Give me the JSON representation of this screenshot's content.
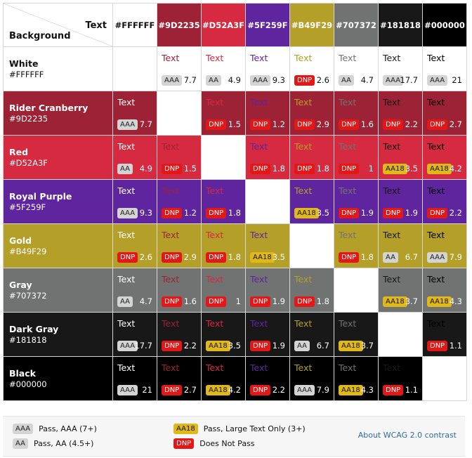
{
  "corner": {
    "text_label": "Text",
    "background_label": "Background"
  },
  "columns": [
    {
      "hex": "#FFFFFF",
      "bg": "#FFFFFF",
      "fg": "#111111"
    },
    {
      "hex": "#9D2235",
      "bg": "#9D2235",
      "fg": "#FFFFFF"
    },
    {
      "hex": "#D52A3F",
      "bg": "#D52A3F",
      "fg": "#FFFFFF"
    },
    {
      "hex": "#5F259F",
      "bg": "#5F259F",
      "fg": "#FFFFFF"
    },
    {
      "hex": "#B49F29",
      "bg": "#B49F29",
      "fg": "#FFFFFF"
    },
    {
      "hex": "#707372",
      "bg": "#707372",
      "fg": "#FFFFFF"
    },
    {
      "hex": "#181818",
      "bg": "#181818",
      "fg": "#FFFFFF"
    },
    {
      "hex": "#000000",
      "bg": "#000000",
      "fg": "#FFFFFF"
    }
  ],
  "rows": [
    {
      "name": "White",
      "hex": "#FFFFFF",
      "bg": "#FFFFFF",
      "fg": "#111111",
      "cells": [
        null,
        {
          "text": "Text",
          "badge": "AAA",
          "ratio": "7.7"
        },
        {
          "text": "Text",
          "badge": "AA",
          "ratio": "4.9"
        },
        {
          "text": "Text",
          "badge": "AAA",
          "ratio": "9.3"
        },
        {
          "text": "Text",
          "badge": "DNP",
          "ratio": "2.6"
        },
        {
          "text": "Text",
          "badge": "AA",
          "ratio": "4.7"
        },
        {
          "text": "Text",
          "badge": "AAA",
          "ratio": "17.7"
        },
        {
          "text": "Text",
          "badge": "AAA",
          "ratio": "21"
        }
      ]
    },
    {
      "name": "Rider Cranberry",
      "hex": "#9D2235",
      "bg": "#9D2235",
      "fg": "#FFFFFF",
      "cells": [
        {
          "text": "Text",
          "badge": "AAA",
          "ratio": "7.7"
        },
        null,
        {
          "text": "Text",
          "badge": "DNP",
          "ratio": "1.5"
        },
        {
          "text": "Text",
          "badge": "DNP",
          "ratio": "1.2"
        },
        {
          "text": "Text",
          "badge": "DNP",
          "ratio": "2.9"
        },
        {
          "text": "Text",
          "badge": "DNP",
          "ratio": "1.6"
        },
        {
          "text": "Text",
          "badge": "DNP",
          "ratio": "2.2"
        },
        {
          "text": "Text",
          "badge": "DNP",
          "ratio": "2.7"
        }
      ]
    },
    {
      "name": "Red",
      "hex": "#D52A3F",
      "bg": "#D52A3F",
      "fg": "#FFFFFF",
      "cells": [
        {
          "text": "Text",
          "badge": "AA",
          "ratio": "4.9"
        },
        {
          "text": "Text",
          "badge": "DNP",
          "ratio": "1.5"
        },
        null,
        {
          "text": "Text",
          "badge": "DNP",
          "ratio": "1.8"
        },
        {
          "text": "Text",
          "badge": "DNP",
          "ratio": "1.8"
        },
        {
          "text": "Text",
          "badge": "DNP",
          "ratio": "1"
        },
        {
          "text": "Text",
          "badge": "AA18",
          "ratio": "3.5"
        },
        {
          "text": "Text",
          "badge": "AA18",
          "ratio": "4.2"
        }
      ]
    },
    {
      "name": "Royal Purple",
      "hex": "#5F259F",
      "bg": "#5F259F",
      "fg": "#FFFFFF",
      "cells": [
        {
          "text": "Text",
          "badge": "AAA",
          "ratio": "9.3"
        },
        {
          "text": "Text",
          "badge": "DNP",
          "ratio": "1.2"
        },
        {
          "text": "Text",
          "badge": "DNP",
          "ratio": "1.8"
        },
        null,
        {
          "text": "Text",
          "badge": "AA18",
          "ratio": "3.5"
        },
        {
          "text": "Text",
          "badge": "DNP",
          "ratio": "1.9"
        },
        {
          "text": "Text",
          "badge": "DNP",
          "ratio": "1.9"
        },
        {
          "text": "Text",
          "badge": "DNP",
          "ratio": "2.2"
        }
      ]
    },
    {
      "name": "Gold",
      "hex": "#B49F29",
      "bg": "#B49F29",
      "fg": "#FFFFFF",
      "cells": [
        {
          "text": "Text",
          "badge": "DNP",
          "ratio": "2.6"
        },
        {
          "text": "Text",
          "badge": "DNP",
          "ratio": "2.9"
        },
        {
          "text": "Text",
          "badge": "DNP",
          "ratio": "1.8"
        },
        {
          "text": "Text",
          "badge": "AA18",
          "ratio": "3.5"
        },
        null,
        {
          "text": "Text",
          "badge": "DNP",
          "ratio": "1.8"
        },
        {
          "text": "Text",
          "badge": "AA",
          "ratio": "6.7"
        },
        {
          "text": "Text",
          "badge": "AAA",
          "ratio": "7.9"
        }
      ]
    },
    {
      "name": "Gray",
      "hex": "#707372",
      "bg": "#707372",
      "fg": "#FFFFFF",
      "cells": [
        {
          "text": "Text",
          "badge": "AA",
          "ratio": "4.7"
        },
        {
          "text": "Text",
          "badge": "DNP",
          "ratio": "1.6"
        },
        {
          "text": "Text",
          "badge": "DNP",
          "ratio": "1"
        },
        {
          "text": "Text",
          "badge": "DNP",
          "ratio": "1.9"
        },
        {
          "text": "Text",
          "badge": "DNP",
          "ratio": "1.8"
        },
        null,
        {
          "text": "Text",
          "badge": "AA18",
          "ratio": "3.7"
        },
        {
          "text": "Text",
          "badge": "AA18",
          "ratio": "4.3"
        }
      ]
    },
    {
      "name": "Dark Gray",
      "hex": "#181818",
      "bg": "#181818",
      "fg": "#FFFFFF",
      "cells": [
        {
          "text": "Text",
          "badge": "AAA",
          "ratio": "17.7"
        },
        {
          "text": "Text",
          "badge": "DNP",
          "ratio": "2.2"
        },
        {
          "text": "Text",
          "badge": "AA18",
          "ratio": "3.5"
        },
        {
          "text": "Text",
          "badge": "DNP",
          "ratio": "1.9"
        },
        {
          "text": "Text",
          "badge": "AA",
          "ratio": "6.7"
        },
        {
          "text": "Text",
          "badge": "AA18",
          "ratio": "3.7"
        },
        null,
        {
          "text": "Text",
          "badge": "DNP",
          "ratio": "1.1"
        }
      ]
    },
    {
      "name": "Black",
      "hex": "#000000",
      "bg": "#000000",
      "fg": "#FFFFFF",
      "cells": [
        {
          "text": "Text",
          "badge": "AAA",
          "ratio": "21"
        },
        {
          "text": "Text",
          "badge": "DNP",
          "ratio": "2.7"
        },
        {
          "text": "Text",
          "badge": "AA18",
          "ratio": "4.2"
        },
        {
          "text": "Text",
          "badge": "DNP",
          "ratio": "2.2"
        },
        {
          "text": "Text",
          "badge": "AAA",
          "ratio": "7.9"
        },
        {
          "text": "Text",
          "badge": "AA18",
          "ratio": "4.3"
        },
        {
          "text": "Text",
          "badge": "DNP",
          "ratio": "1.1"
        },
        null
      ]
    }
  ],
  "legend": {
    "aaa": {
      "badge": "AAA",
      "label": "Pass, AAA (7+)"
    },
    "aa": {
      "badge": "AA",
      "label": "Pass, AA (4.5+)"
    },
    "aa18": {
      "badge": "AA18",
      "label": "Pass, Large Text Only (3+)"
    },
    "dnp": {
      "badge": "DNP",
      "label": "Does Not Pass"
    },
    "about_link": "About WCAG 2.0 contrast"
  }
}
